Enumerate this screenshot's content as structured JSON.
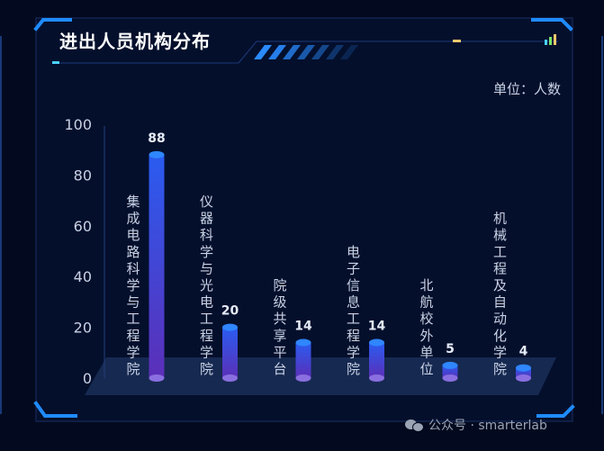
{
  "panel": {
    "title": "进出人员机构分布",
    "unit_label": "单位：人数"
  },
  "watermark": {
    "text": "公众号 · smarterlab",
    "icon": "wechat-icon"
  },
  "colors": {
    "accent": "#1f8bff",
    "bar_top": "#2f6bff",
    "bar_bottom": "#5a2fb5",
    "platform": "#1c2f5a",
    "axis_text": "#c9d2e4"
  },
  "chart_data": {
    "type": "bar",
    "title": "进出人员机构分布",
    "ylabel": "单位：人数",
    "ylim": [
      0,
      100
    ],
    "yticks": [
      0,
      20,
      40,
      60,
      80,
      100
    ],
    "grid": false,
    "categories": [
      "集成电路科学与工程学院",
      "仪器科学与光电工程学院",
      "院级共享平台",
      "电子信息工程学院",
      "北航校外单位",
      "机械工程及自动化学院"
    ],
    "values": [
      88,
      20,
      14,
      14,
      5,
      4
    ]
  }
}
